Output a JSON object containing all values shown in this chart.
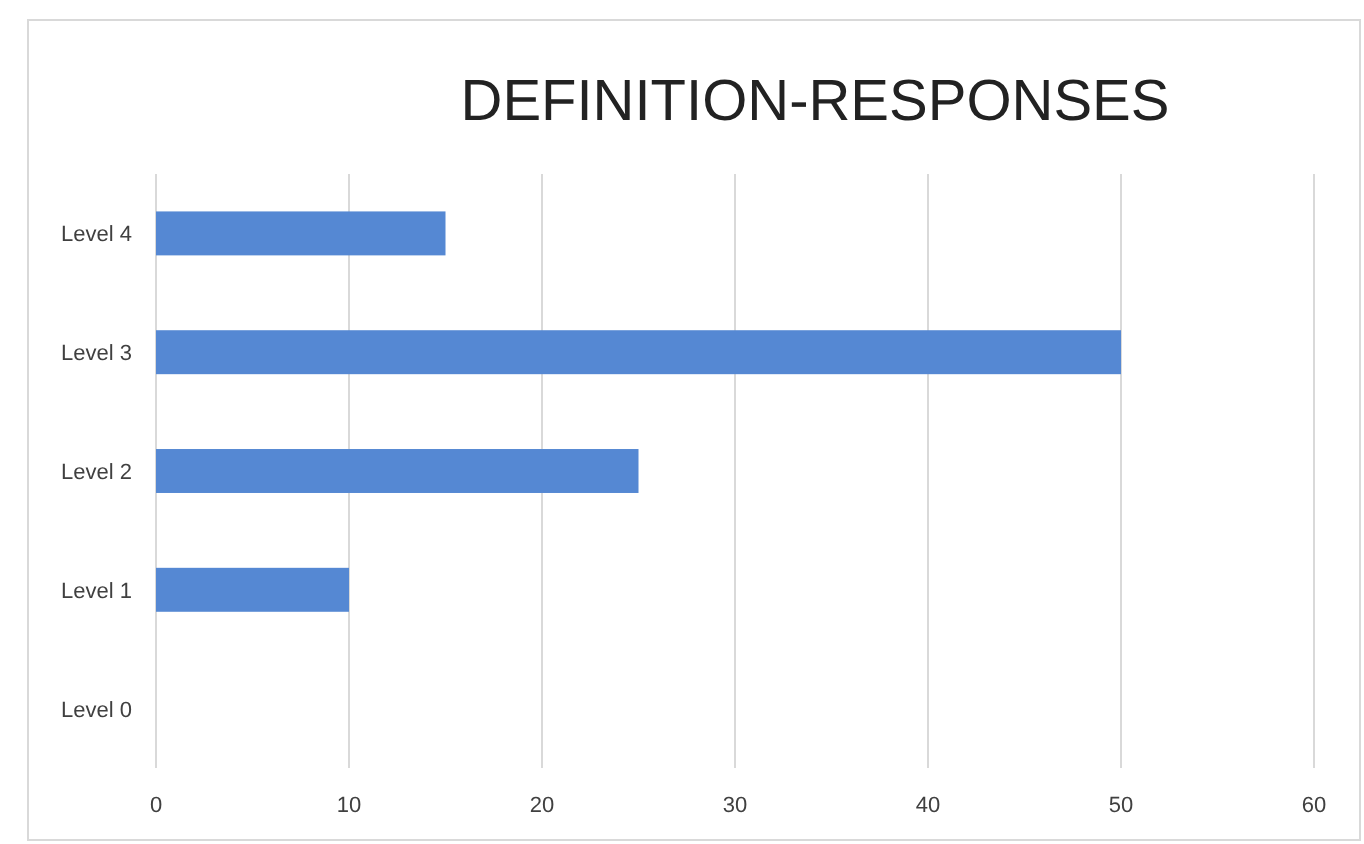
{
  "chart_data": {
    "type": "bar",
    "orientation": "horizontal",
    "title": "DEFINITION-RESPONSES",
    "categories": [
      "Level 4",
      "Level 3",
      "Level 2",
      "Level 1",
      "Level 0"
    ],
    "values": [
      15,
      50,
      25,
      10,
      0
    ],
    "color": "#5588d3",
    "xlim": [
      0,
      60
    ],
    "xticks": [
      0,
      10,
      20,
      30,
      40,
      50,
      60
    ],
    "grid": "x"
  }
}
